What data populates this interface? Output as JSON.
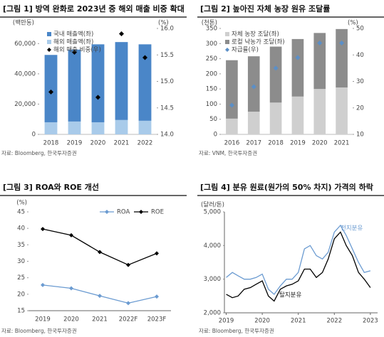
{
  "chart_data": [
    {
      "type": "bar",
      "title": "[그림 1] 방역 완화로 2023년 중 해외 매출 비중 확대",
      "y_label": "(백만동)",
      "y2_label": "(%)",
      "categories": [
        "2018",
        "2019",
        "2020",
        "2021",
        "2022"
      ],
      "stacked": true,
      "stack_order": "reverse",
      "series": [
        {
          "name": "국내 매출액(좌)",
          "type": "bar",
          "color": "#4a86c8",
          "values": [
            44500,
            47500,
            51500,
            51500,
            50500
          ]
        },
        {
          "name": "해외 매출액(좌)",
          "type": "bar",
          "color": "#a9cbea",
          "values": [
            8000,
            8500,
            8000,
            9500,
            9000
          ]
        },
        {
          "name": "해외 매출 비중(우)",
          "type": "scatter",
          "axis": "y2",
          "color": "#000000",
          "values": [
            14.8,
            15.55,
            14.7,
            15.9,
            15.45
          ]
        }
      ],
      "ylim": [
        0,
        70000
      ],
      "yticks": [
        0,
        {
          "value": 20000,
          "label": "20,000"
        },
        {
          "value": 40000,
          "label": "40,000"
        },
        {
          "value": 60000,
          "label": "60,000"
        }
      ],
      "y2lim": [
        14,
        16
      ],
      "y2ticks": [
        {
          "value": 14,
          "label": "14.0"
        },
        14.5,
        {
          "value": 15,
          "label": "15.0"
        },
        15.5,
        {
          "value": 16,
          "label": "16.0"
        }
      ],
      "source": "자료: Bloomberg, 한국투자증권"
    },
    {
      "type": "bar",
      "title": "[그림 2] 높아진 자체 농장 원유 조달률",
      "y_label": "(천톤)",
      "y2_label": "(%)",
      "categories": [
        "2016",
        "2017",
        "2018",
        "2019",
        "2020",
        "2021"
      ],
      "stacked": true,
      "series": [
        {
          "name": "자체 농장 조달(좌)",
          "type": "bar",
          "color": "#cfcfcf",
          "values": [
            52,
            75,
            105,
            125,
            150,
            155
          ]
        },
        {
          "name": "로컬 낙농가 조달(좌)",
          "type": "bar",
          "color": "#8c8c8c",
          "values": [
            193,
            183,
            185,
            190,
            185,
            193
          ]
        },
        {
          "name": "자급률(우)",
          "type": "scatter",
          "axis": "y2",
          "color": "#5b8fc7",
          "values": [
            21,
            28,
            35,
            39,
            44.5,
            44.5
          ]
        }
      ],
      "ylim": [
        0,
        350
      ],
      "yticks": [
        0,
        50,
        100,
        150,
        200,
        250,
        300,
        350
      ],
      "y2lim": [
        10,
        50
      ],
      "y2ticks": [
        10,
        20,
        30,
        40,
        50
      ],
      "source": "자료: VNM, 한국투자증권"
    },
    {
      "type": "line",
      "title": "[그림 3] ROA와 ROE 개선",
      "y_label": "(%)",
      "categories": [
        "2019",
        "2020",
        "2021",
        "2022F",
        "2023F"
      ],
      "series": [
        {
          "name": "ROA",
          "type": "line",
          "marker": true,
          "color": "#6b9bd1",
          "values": [
            22.8,
            21.8,
            19.5,
            17.3,
            19.3
          ]
        },
        {
          "name": "ROE",
          "type": "line",
          "marker": true,
          "color": "#000000",
          "values": [
            39.8,
            37.9,
            32.8,
            28.9,
            32.4
          ]
        }
      ],
      "ylim": [
        15,
        45
      ],
      "yticks": [
        15,
        20,
        25,
        30,
        35,
        40,
        45
      ],
      "source": "자료: Bloomberg, 한국투자증권"
    },
    {
      "type": "line",
      "title": "[그림 4] 분유 원료(원가의 50% 차지) 가격의 하락",
      "y_label": "(달러/톤)",
      "x": [
        2019,
        2019.17,
        2019.33,
        2019.5,
        2019.67,
        2019.83,
        2020,
        2020.17,
        2020.33,
        2020.5,
        2020.67,
        2020.83,
        2021,
        2021.17,
        2021.33,
        2021.5,
        2021.67,
        2021.83,
        2022,
        2022.17,
        2022.33,
        2022.5,
        2022.67,
        2022.83,
        2023
      ],
      "series": [
        {
          "name": "전지분유",
          "type": "line",
          "color": "#6b9bd1",
          "values": [
            3050,
            3200,
            3100,
            3000,
            3000,
            3050,
            3150,
            2700,
            2550,
            2800,
            3000,
            3000,
            3200,
            3900,
            4000,
            3700,
            3600,
            3800,
            4400,
            4600,
            4300,
            3900,
            3500,
            3200,
            3250
          ]
        },
        {
          "name": "탈지분유",
          "type": "line",
          "color": "#000000",
          "values": [
            2550,
            2450,
            2500,
            2700,
            2750,
            2850,
            2950,
            2500,
            2350,
            2700,
            2800,
            2850,
            2950,
            3300,
            3300,
            3050,
            3200,
            3600,
            4200,
            4400,
            4000,
            3700,
            3200,
            3000,
            2750
          ]
        }
      ],
      "xlim": [
        2018.95,
        2023.2
      ],
      "xticks": [
        2019,
        2020,
        2021,
        2022,
        2023
      ],
      "ylim": [
        2000,
        5000
      ],
      "yticks": [
        {
          "value": 2000,
          "label": "2,000"
        },
        {
          "value": 3000,
          "label": "3,000"
        },
        {
          "value": 4000,
          "label": "4,000"
        },
        {
          "value": 5000,
          "label": "5,000"
        }
      ],
      "source": "자료: Bloomberg, 한국투자증권"
    }
  ]
}
